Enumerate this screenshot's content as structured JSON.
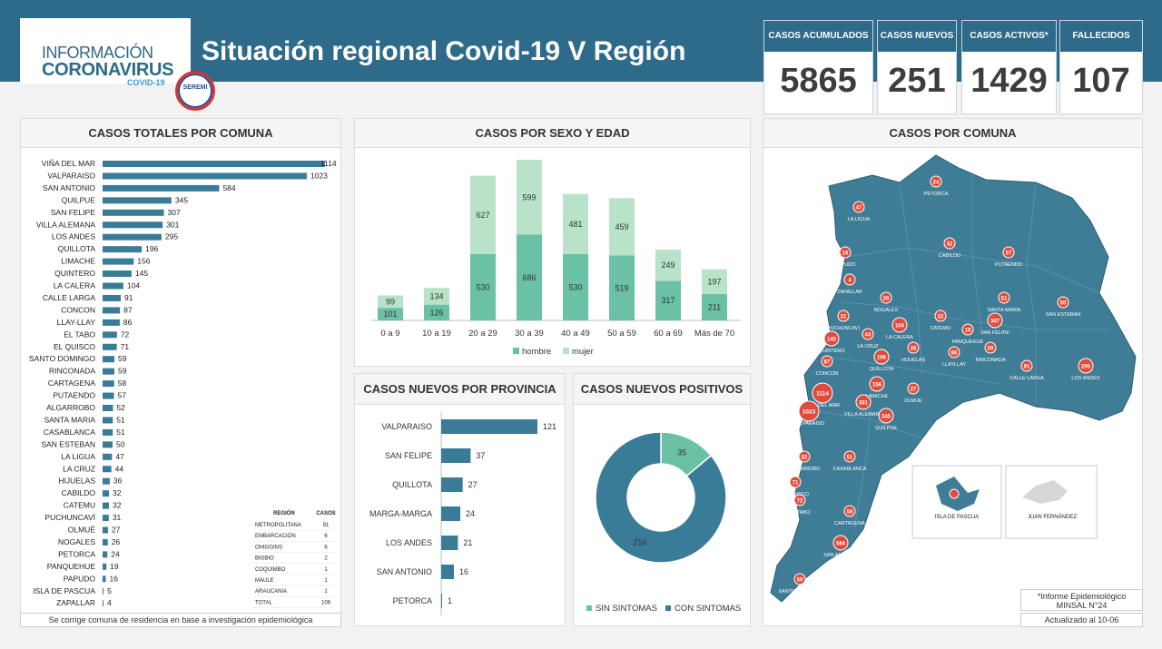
{
  "header": {
    "logo_line1": "INFORMACIÓN",
    "logo_line2": "CORONAVIRUS",
    "logo_line3": "COVID-19",
    "seremi_label": "SEREMI",
    "title": "Situación regional Covid-19 V Región"
  },
  "kpis": [
    {
      "label": "CASOS ACUMULADOS",
      "value": "5865"
    },
    {
      "label": "CASOS NUEVOS",
      "value": "251"
    },
    {
      "label": "CASOS ACTIVOS*",
      "value": "1429"
    },
    {
      "label": "FALLECIDOS",
      "value": "107"
    }
  ],
  "colors": {
    "primary": "#2e6a89",
    "bar": "#3a7b98",
    "hombre": "#6ac1a5",
    "mujer": "#b8e3c9",
    "marker": "#e04b3b",
    "map_fill": "#3f7d97"
  },
  "comuna_panel": {
    "title": "CASOS TOTALES POR COMUNA",
    "footer": "Se corrige comuna de residencia en base a investigación epidemiológica"
  },
  "sexo_panel": {
    "title": "CASOS POR SEXO Y EDAD"
  },
  "provincia_panel": {
    "title": "CASOS NUEVOS  POR PROVINCIA"
  },
  "positivos_panel": {
    "title": "CASOS NUEVOS POSITIVOS"
  },
  "map_panel": {
    "title": "CASOS POR COMUNA",
    "note_line1": "*Informe Epidemiológico",
    "note_line2": "MINSAL N°24",
    "updated": "Actualizado al 10-06",
    "inset1": "ISLA DE PASCUA",
    "inset2": "JUAN FERNÁNDEZ"
  },
  "region_table": {
    "headers": [
      "REGIÓN",
      "CASOS"
    ],
    "rows": [
      [
        "METROPOLITANA",
        "91"
      ],
      [
        "EMBARCACIÓN",
        "6"
      ],
      [
        "OHIGGINS",
        "6"
      ],
      [
        "BIOBIO",
        "2"
      ],
      [
        "COQUIMBO",
        "1"
      ],
      [
        "MAULE",
        "1"
      ],
      [
        "ARAUCANIA",
        "1"
      ],
      [
        "TOTAL",
        "108"
      ]
    ]
  },
  "map_labels": [
    {
      "name": "PETORCA",
      "value": "24"
    },
    {
      "name": "LA LIGUA",
      "value": "47"
    },
    {
      "name": "CABILDO",
      "value": "32"
    },
    {
      "name": "PAPUDO",
      "value": "16"
    },
    {
      "name": "ZAPALLAR",
      "value": "4"
    },
    {
      "name": "NOGALES",
      "value": "26"
    },
    {
      "name": "PUTAENDO",
      "value": "57"
    },
    {
      "name": "SANTA MARIA",
      "value": "51"
    },
    {
      "name": "SAN ESTEBAN",
      "value": "50"
    },
    {
      "name": "PUCHUNCAVI",
      "value": "31"
    },
    {
      "name": "LA CALERA",
      "value": "104"
    },
    {
      "name": "CATEMU",
      "value": "32"
    },
    {
      "name": "SAN FELIPE",
      "value": "307"
    },
    {
      "name": "PANQUEHUE",
      "value": "19"
    },
    {
      "name": "QUINTERO",
      "value": "145"
    },
    {
      "name": "LA CRUZ",
      "value": "44"
    },
    {
      "name": "HIJUELAS",
      "value": "36"
    },
    {
      "name": "LLAYLLAY",
      "value": "86"
    },
    {
      "name": "RINCONADA",
      "value": "59"
    },
    {
      "name": "CONCON",
      "value": "87"
    },
    {
      "name": "QUILLOTA",
      "value": "196"
    },
    {
      "name": "VIÑA DEL MAR",
      "value": "1114"
    },
    {
      "name": "LIMACHE",
      "value": "156"
    },
    {
      "name": "OLMUE",
      "value": "27"
    },
    {
      "name": "CALLE LARGA",
      "value": "91"
    },
    {
      "name": "LOS ANDES",
      "value": "295"
    },
    {
      "name": "VILLA ALEMANA",
      "value": "301"
    },
    {
      "name": "VALPARAISO",
      "value": "1023"
    },
    {
      "name": "QUILPUE",
      "value": "345"
    },
    {
      "name": "ALGARROBO",
      "value": "52"
    },
    {
      "name": "CASABLANCA",
      "value": "51"
    },
    {
      "name": "EL QUISCO",
      "value": "71"
    },
    {
      "name": "EL TABO",
      "value": "72"
    },
    {
      "name": "CARTAGENA",
      "value": "58"
    },
    {
      "name": "SAN ANTONIO",
      "value": "584"
    },
    {
      "name": "SANTO DOMINGO",
      "value": "59"
    },
    {
      "name": "ISLA DE PASCUA",
      "value": "5"
    }
  ],
  "chart_data": [
    {
      "type": "bar",
      "orientation": "horizontal",
      "title": "CASOS TOTALES POR COMUNA",
      "categories": [
        "VIÑA DEL MAR",
        "VALPARAISO",
        "SAN ANTONIO",
        "QUILPUE",
        "SAN FELIPE",
        "VILLA ALEMANA",
        "LOS ANDES",
        "QUILLOTA",
        "LIMACHE",
        "QUINTERO",
        "LA CALERA",
        "CALLE LARGA",
        "CONCON",
        "LLAY-LLAY",
        "EL TABO",
        "EL QUISCO",
        "SANTO DOMINGO",
        "RINCONADA",
        "CARTAGENA",
        "PUTAENDO",
        "ALGARROBO",
        "SANTA MARIA",
        "CASABLANCA",
        "SAN ESTEBAN",
        "LA LIGUA",
        "LA CRUZ",
        "HIJUELAS",
        "CABILDO",
        "CATEMU",
        "PUCHUNCAVÍ",
        "OLMUÉ",
        "NOGALES",
        "PETORCA",
        "PANQUEHUE",
        "PAPUDO",
        "ISLA DE PASCUA",
        "ZAPALLAR"
      ],
      "values": [
        1114,
        1023,
        584,
        345,
        307,
        301,
        295,
        196,
        156,
        145,
        104,
        91,
        87,
        86,
        72,
        71,
        59,
        59,
        58,
        57,
        52,
        51,
        51,
        50,
        47,
        44,
        36,
        32,
        32,
        31,
        27,
        26,
        24,
        19,
        16,
        5,
        4
      ]
    },
    {
      "type": "bar",
      "stacked": true,
      "title": "CASOS POR SEXO Y EDAD",
      "categories": [
        "0 a 9",
        "10 a 19",
        "20 a 29",
        "30 a 39",
        "40 a 49",
        "50 a 59",
        "60 a 69",
        "Más de 70"
      ],
      "series": [
        {
          "name": "hombre",
          "values": [
            101,
            126,
            530,
            686,
            530,
            519,
            317,
            211
          ]
        },
        {
          "name": "mujer",
          "values": [
            99,
            134,
            627,
            599,
            481,
            459,
            249,
            197
          ]
        }
      ],
      "legend": "bottom"
    },
    {
      "type": "bar",
      "orientation": "horizontal",
      "title": "CASOS NUEVOS  POR PROVINCIA",
      "categories": [
        "VALPARAISO",
        "SAN FELIPE",
        "QUILLOTA",
        "MARGA-MARGA",
        "LOS ANDES",
        "SAN ANTONIO",
        "PETORCA"
      ],
      "values": [
        121,
        37,
        27,
        24,
        21,
        16,
        1
      ]
    },
    {
      "type": "pie",
      "donut": true,
      "title": "CASOS NUEVOS POSITIVOS",
      "categories": [
        "SIN SINTOMAS",
        "CON SINTOMAS"
      ],
      "values": [
        35,
        216
      ],
      "legend": "bottom"
    }
  ]
}
